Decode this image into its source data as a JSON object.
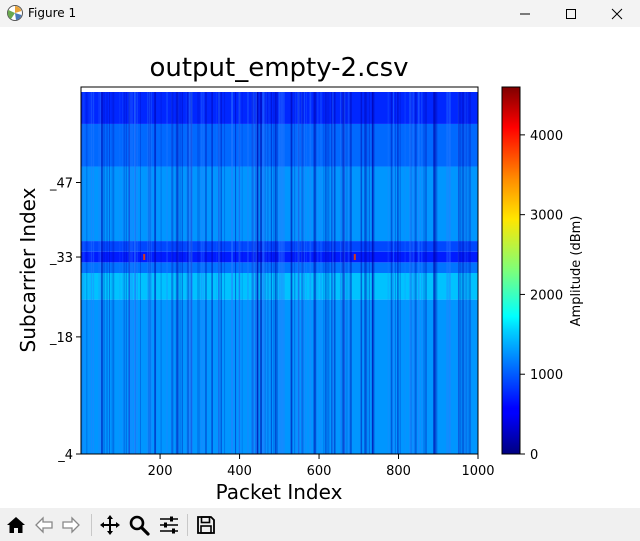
{
  "window": {
    "title": "Figure 1",
    "icon": "matplotlib-figure-icon",
    "controls": [
      "minimize-icon",
      "maximize-icon",
      "close-icon"
    ]
  },
  "toolbar": {
    "buttons": [
      {
        "name": "home-icon",
        "action": "Home"
      },
      {
        "name": "back-icon",
        "action": "Back"
      },
      {
        "name": "forward-icon",
        "action": "Forward"
      },
      {
        "name": "pan-icon",
        "action": "Pan"
      },
      {
        "name": "zoom-icon",
        "action": "Zoom"
      },
      {
        "name": "configure-subplots-icon",
        "action": "Subplots"
      },
      {
        "name": "save-icon",
        "action": "Save"
      }
    ]
  },
  "chart_data": {
    "type": "heatmap",
    "title": "output_empty-2.csv",
    "xlabel": "Packet Index",
    "ylabel": "Subcarrier Index",
    "xlim": [
      1,
      1000
    ],
    "ylim": [
      -4,
      64
    ],
    "x_ticks": [
      200,
      400,
      600,
      800,
      1000
    ],
    "y_ticks": [
      {
        "value": -4,
        "label": "_4"
      },
      {
        "value": 18,
        "label": "_18"
      },
      {
        "value": 33,
        "label": "_33"
      },
      {
        "value": 47,
        "label": "_47"
      }
    ],
    "colormap": "jet",
    "colorbar": {
      "label": "Amplitude (dBm)",
      "range": [
        0,
        4600
      ],
      "ticks": [
        0,
        1000,
        2000,
        3000,
        4000
      ]
    },
    "grid": false,
    "bands": [
      {
        "from": -4,
        "to": 25,
        "amplitude": 1250
      },
      {
        "from": 25,
        "to": 30,
        "amplitude": 1450
      },
      {
        "from": 30,
        "to": 32,
        "amplitude": 1100
      },
      {
        "from": 32,
        "to": 34,
        "amplitude": 700
      },
      {
        "from": 34,
        "to": 36,
        "amplitude": 900
      },
      {
        "from": 36,
        "to": 50,
        "amplitude": 1250
      },
      {
        "from": 50,
        "to": 58,
        "amplitude": 1050
      },
      {
        "from": 58,
        "to": 64,
        "amplitude": 750
      }
    ],
    "annotations": [
      {
        "x": 160,
        "y": 33,
        "note": "spike"
      },
      {
        "x": 690,
        "y": 33,
        "note": "spike"
      }
    ]
  }
}
